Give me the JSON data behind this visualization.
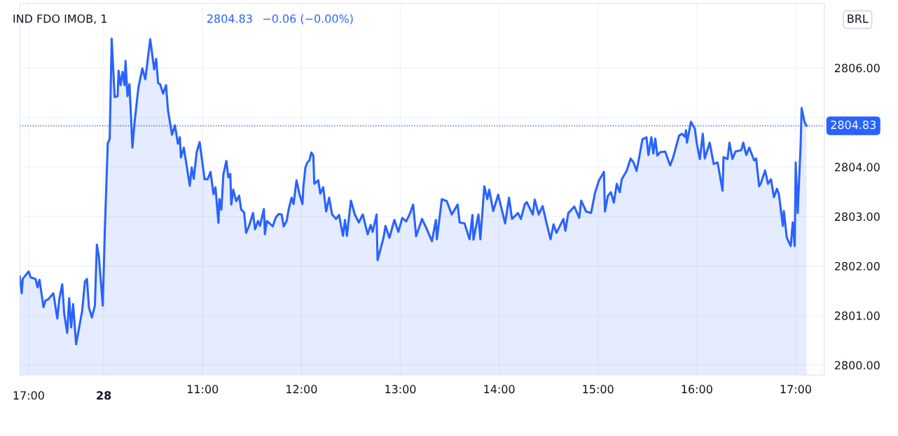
{
  "chart_data": {
    "type": "area",
    "title": "IND FDO IMOB, 1",
    "annotations": [
      "17:00",
      "28",
      "2804.83",
      "−0.06 (−0.00%)",
      "BRL"
    ],
    "series": [
      {
        "color": "#2962ff",
        "x": [
          9.15,
          9.17,
          9.18,
          9.24,
          9.26,
          9.31,
          9.33,
          9.35,
          9.39,
          9.41,
          9.44,
          9.49,
          9.53,
          9.55,
          9.58,
          9.6,
          9.63,
          9.65,
          9.67,
          9.69,
          9.72,
          9.78,
          9.81,
          9.83,
          9.85,
          9.88,
          9.91,
          9.93,
          9.95,
          9.99,
          10.01,
          10.04,
          10.06,
          10.08,
          10.11,
          10.14,
          10.15,
          10.17,
          10.19,
          10.21,
          10.22,
          10.24,
          10.26,
          10.29,
          10.31,
          10.35,
          10.39,
          10.42,
          10.47,
          10.51,
          10.53,
          10.55,
          10.57,
          10.6,
          10.63,
          10.65,
          10.69,
          10.72,
          10.75,
          10.77,
          10.78,
          10.81,
          10.87,
          10.89,
          10.91,
          10.94,
          10.97,
          11.02,
          11.05,
          11.08,
          11.11,
          11.13,
          11.16,
          11.17,
          11.19,
          11.21,
          11.24,
          11.26,
          11.28,
          11.29,
          11.31,
          11.34,
          11.37,
          11.39,
          11.42,
          11.44,
          11.47,
          11.51,
          11.53,
          11.56,
          11.58,
          11.62,
          11.63,
          11.65,
          11.71,
          11.74,
          11.77,
          11.8,
          11.82,
          11.85,
          11.87,
          11.9,
          11.92,
          11.95,
          11.98,
          12.01,
          12.02,
          12.04,
          12.06,
          12.08,
          12.1,
          12.12,
          12.13,
          12.17,
          12.19,
          12.22,
          12.25,
          12.28,
          12.31,
          12.35,
          12.38,
          12.42,
          12.44,
          12.46,
          12.5,
          12.54,
          12.58,
          12.62,
          12.67,
          12.7,
          12.72,
          12.76,
          12.77,
          12.83,
          12.85,
          12.89,
          12.94,
          12.98,
          13.02,
          13.06,
          13.1,
          13.13,
          13.16,
          13.22,
          13.26,
          13.32,
          13.36,
          13.37,
          13.42,
          13.47,
          13.52,
          13.58,
          13.6,
          13.65,
          13.7,
          13.73,
          13.74,
          13.79,
          13.81,
          13.85,
          13.88,
          13.9,
          13.94,
          13.99,
          14.06,
          14.1,
          14.13,
          14.19,
          14.22,
          14.26,
          14.28,
          14.34,
          14.36,
          14.4,
          14.44,
          14.48,
          14.52,
          14.55,
          14.58,
          14.65,
          14.67,
          14.7,
          14.76,
          14.81,
          14.83,
          14.88,
          14.93,
          14.97,
          15.01,
          15.06,
          15.07,
          15.1,
          15.13,
          15.16,
          15.19,
          15.22,
          15.24,
          15.29,
          15.33,
          15.36,
          15.39,
          15.42,
          15.45,
          15.49,
          15.51,
          15.54,
          15.56,
          15.58,
          15.6,
          15.63,
          15.68,
          15.73,
          15.76,
          15.82,
          15.85,
          15.88,
          15.89,
          15.9,
          15.94,
          15.98,
          16.0,
          16.03,
          16.06,
          16.08,
          16.13,
          16.17,
          16.21,
          16.26,
          16.27,
          16.31,
          16.33,
          16.36,
          16.39,
          16.45,
          16.47,
          16.5,
          16.53,
          16.58,
          16.6,
          16.63,
          16.65,
          16.69,
          16.72,
          16.75,
          16.78,
          16.81,
          16.83,
          16.87,
          16.88,
          16.91,
          16.95,
          16.97,
          16.99,
          17.0,
          17.02,
          17.05,
          17.06,
          17.09,
          17.11
        ],
        "values": [
          2801.79,
          2801.45,
          2801.74,
          2801.89,
          2801.77,
          2801.74,
          2801.57,
          2801.72,
          2801.17,
          2801.3,
          2801.33,
          2801.45,
          2800.94,
          2801.33,
          2801.63,
          2801.03,
          2800.65,
          2801.35,
          2800.76,
          2801.23,
          2800.42,
          2801.08,
          2801.69,
          2801.74,
          2801.16,
          2800.96,
          2801.2,
          2802.43,
          2802.2,
          2801.2,
          2802.67,
          2804.47,
          2804.57,
          2806.59,
          2805.41,
          2805.43,
          2805.94,
          2805.65,
          2805.92,
          2805.65,
          2806.14,
          2805.43,
          2805.67,
          2804.39,
          2804.87,
          2805.6,
          2805.99,
          2805.77,
          2806.58,
          2805.97,
          2806.18,
          2805.69,
          2805.67,
          2805.48,
          2805.65,
          2805.14,
          2804.65,
          2804.84,
          2804.47,
          2804.6,
          2804.19,
          2804.39,
          2803.62,
          2803.99,
          2803.76,
          2804.3,
          2804.5,
          2803.75,
          2803.75,
          2803.9,
          2803.45,
          2803.59,
          2802.87,
          2803.35,
          2803.14,
          2803.85,
          2804.12,
          2803.79,
          2803.86,
          2803.24,
          2803.54,
          2803.31,
          2803.42,
          2803.14,
          2803.08,
          2802.67,
          2802.81,
          2803.07,
          2802.74,
          2802.91,
          2802.81,
          2803.15,
          2802.64,
          2802.91,
          2802.8,
          2802.98,
          2803.05,
          2803.04,
          2802.8,
          2802.91,
          2803.14,
          2803.38,
          2803.25,
          2803.73,
          2803.45,
          2803.25,
          2803.61,
          2803.99,
          2804.09,
          2804.13,
          2804.29,
          2804.23,
          2803.66,
          2803.73,
          2803.46,
          2803.59,
          2803.1,
          2803.38,
          2803.04,
          2802.95,
          2803.03,
          2802.61,
          2802.93,
          2802.61,
          2803.32,
          2803.04,
          2802.88,
          2803.04,
          2802.64,
          2802.83,
          2802.69,
          2803.04,
          2802.12,
          2802.57,
          2802.81,
          2802.57,
          2802.93,
          2802.69,
          2802.97,
          2802.9,
          2803.07,
          2803.24,
          2802.6,
          2802.95,
          2802.78,
          2802.5,
          2802.93,
          2802.54,
          2803.35,
          2803.31,
          2803.04,
          2803.24,
          2802.88,
          2802.86,
          2802.54,
          2803.03,
          2802.53,
          2803.04,
          2802.54,
          2803.61,
          2803.35,
          2803.54,
          2803.11,
          2803.44,
          2802.86,
          2803.38,
          2802.95,
          2803.07,
          2802.95,
          2803.25,
          2803.29,
          2803.04,
          2803.34,
          2803.04,
          2803.21,
          2802.86,
          2802.54,
          2802.84,
          2802.67,
          2802.95,
          2802.71,
          2803.07,
          2803.2,
          2802.97,
          2803.32,
          2803.1,
          2803.07,
          2803.48,
          2803.73,
          2803.9,
          2803.1,
          2803.42,
          2803.49,
          2803.28,
          2803.66,
          2803.49,
          2803.75,
          2803.92,
          2804.17,
          2804.09,
          2803.92,
          2804.23,
          2804.56,
          2804.6,
          2804.24,
          2804.6,
          2804.27,
          2804.57,
          2804.23,
          2804.3,
          2804.31,
          2804.03,
          2804.19,
          2804.63,
          2804.67,
          2804.61,
          2804.74,
          2804.49,
          2804.91,
          2804.77,
          2804.47,
          2804.16,
          2804.67,
          2804.17,
          2804.49,
          2804.06,
          2804.09,
          2803.52,
          2804.2,
          2804.16,
          2804.49,
          2804.16,
          2804.31,
          2804.34,
          2804.49,
          2804.24,
          2804.39,
          2804.13,
          2804.17,
          2803.61,
          2803.68,
          2803.93,
          2803.66,
          2803.75,
          2803.39,
          2803.56,
          2803.45,
          2802.81,
          2803.11,
          2802.57,
          2802.4,
          2802.88,
          2802.4,
          2804.09,
          2803.07,
          2804.44,
          2805.19,
          2804.9,
          2804.83
        ]
      }
    ],
    "xlim": [
      9.15,
      17.29
    ],
    "xticks": [
      {
        "value": 9.24,
        "label": null
      },
      {
        "value": 10,
        "label": null
      },
      {
        "value": 11,
        "label": "11:00"
      },
      {
        "value": 12,
        "label": "12:00"
      },
      {
        "value": 13,
        "label": "13:00"
      },
      {
        "value": 14,
        "label": "14:00"
      },
      {
        "value": 15,
        "label": "15:00"
      },
      {
        "value": 16,
        "label": "16:00"
      },
      {
        "value": 17,
        "label": "17:00"
      }
    ],
    "ylim": [
      2799.8,
      2807.3
    ],
    "yticks": [
      {
        "value": 2800,
        "label": "2800.00"
      },
      {
        "value": 2801,
        "label": "2801.00"
      },
      {
        "value": 2802,
        "label": "2802.00"
      },
      {
        "value": 2803,
        "label": "2803.00"
      },
      {
        "value": 2804,
        "label": "2804.00"
      },
      {
        "value": 2805,
        "label": null
      },
      {
        "value": 2806,
        "label": "2806.00"
      }
    ],
    "ref_lines": [
      {
        "axis": "y",
        "value": 2804.83,
        "label": "2804.83",
        "color": "#2962ff",
        "line_style": "dotted"
      }
    ],
    "grid": true,
    "line_style": "solid",
    "marker": "none"
  }
}
